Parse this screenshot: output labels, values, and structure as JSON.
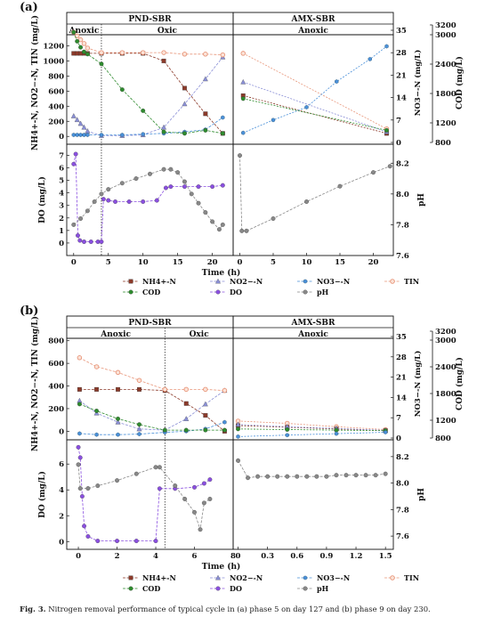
{
  "caption": {
    "label": "Fig. 3.",
    "text": "Nitrogen removal performance of typical cycle in (a) phase 5 on day 127 and (b) phase 9 on day 230."
  },
  "legend": [
    {
      "name": "NH4+-N",
      "color": "#8b3a2a",
      "marker": "square"
    },
    {
      "name": "NO2−-N",
      "color": "#8a8fd6",
      "marker": "triangle"
    },
    {
      "name": "NO3−-N",
      "color": "#4a90d9",
      "marker": "hexagon"
    },
    {
      "name": "TIN",
      "color": "#e8967a",
      "marker": "circle-open"
    },
    {
      "name": "COD",
      "color": "#2e8b2e",
      "marker": "circle"
    },
    {
      "name": "DO",
      "color": "#8a4fe0",
      "marker": "circle"
    },
    {
      "name": "pH",
      "color": "#888888",
      "marker": "circle"
    }
  ],
  "panels": [
    {
      "label": "(a)",
      "pnd_title": "PND-SBR",
      "amx_title": "AMX-SBR",
      "anoxic_label": "Anoxic",
      "oxic_label": "Oxic",
      "amx_phase_label": "Anoxic",
      "ylabel_n": "NH4+-N, NO2−-N, TIN (mg/L)",
      "ylabel_no3": "NO3−-N (mg/L)",
      "ylabel_cod": "COD (mg/L)",
      "ylabel_do": "DO (mg/L)",
      "ylabel_ph": "pH",
      "xlabel": "Time (h)"
    },
    {
      "label": "(b)",
      "pnd_title": "PND-SBR",
      "amx_title": "AMX-SBR",
      "anoxic_label": "Anoxic",
      "oxic_label": "Oxic",
      "amx_phase_label": "Anoxic",
      "ylabel_n": "NH4+-N, NO2−-N, TIN (mg/L)",
      "ylabel_no3": "NO3−-N (mg/L)",
      "ylabel_cod": "COD (mg/L)",
      "ylabel_do": "DO (mg/L)",
      "ylabel_ph": "pH",
      "xlabel": "Time (h)"
    }
  ],
  "chart_data": [
    {
      "panel": "(a)",
      "type": "line",
      "pnd_upper": {
        "xlim": [
          -1,
          23
        ],
        "ylim": [
          -80,
          1500
        ],
        "yticks": [
          0,
          200,
          400,
          600,
          800,
          1000,
          1200
        ],
        "phase_boundary_h": 4,
        "series": [
          {
            "name": "NH4+-N",
            "x": [
              0,
              0.5,
              1,
              1.5,
              2,
              4,
              7,
              10,
              13,
              16,
              19,
              21.5
            ],
            "y": [
              1100,
              1100,
              1100,
              1100,
              1100,
              1100,
              1100,
              1100,
              1000,
              640,
              300,
              40
            ]
          },
          {
            "name": "NO2−-N",
            "x": [
              0,
              0.5,
              1,
              1.5,
              2,
              4,
              7,
              10,
              13,
              16,
              19,
              21.5
            ],
            "y": [
              270,
              220,
              170,
              120,
              70,
              10,
              10,
              20,
              120,
              430,
              760,
              1050
            ]
          },
          {
            "name": "NO3−-N",
            "x": [
              0,
              0.5,
              1,
              1.5,
              2,
              4,
              7,
              10,
              13,
              16,
              19,
              21.5
            ],
            "y": [
              20,
              20,
              20,
              20,
              20,
              20,
              20,
              30,
              40,
              60,
              90,
              250
            ]
          },
          {
            "name": "TIN",
            "x": [
              0,
              0.5,
              1,
              1.5,
              2,
              4,
              7,
              10,
              13,
              16,
              19,
              21.5
            ],
            "y": [
              1380,
              1330,
              1280,
              1230,
              1170,
              1110,
              1110,
              1110,
              1110,
              1090,
              1090,
              1080
            ]
          },
          {
            "name": "COD",
            "x": [
              0,
              0.5,
              1,
              1.5,
              2,
              4,
              7,
              10,
              13,
              16,
              19,
              21.5
            ],
            "y": [
              1380,
              1260,
              1180,
              1120,
              1090,
              960,
              620,
              340,
              60,
              40,
              80,
              40
            ]
          }
        ]
      },
      "pnd_lower": {
        "xlim": [
          -1,
          23
        ],
        "ylim_do": [
          -1,
          7.6
        ],
        "yticks_do": [
          0,
          1,
          2,
          3,
          4,
          5,
          6,
          7
        ],
        "ylim_ph": [
          7.6,
          8.3
        ],
        "yticks_ph": [
          7.6,
          7.8,
          8.0,
          8.2
        ],
        "xticks": [
          0,
          5,
          10,
          15,
          20
        ],
        "series": [
          {
            "name": "DO",
            "x": [
              0,
              0.3,
              0.6,
              0.9,
              1.5,
              2.5,
              3.5,
              4,
              4.3,
              5,
              6,
              8,
              10,
              12,
              13.3,
              14,
              16,
              18,
              20,
              21.5
            ],
            "y": [
              6.3,
              7.1,
              0.6,
              0.2,
              0.1,
              0.1,
              0.1,
              0.1,
              3.5,
              3.4,
              3.3,
              3.3,
              3.3,
              3.4,
              4.4,
              4.5,
              4.5,
              4.5,
              4.5,
              4.6
            ]
          },
          {
            "name": "pH",
            "x": [
              0,
              1,
              2,
              3,
              4,
              5,
              7,
              9,
              11,
              13,
              14,
              15,
              16,
              17,
              18,
              19,
              20,
              21,
              21.5
            ],
            "y": [
              7.8,
              7.84,
              7.89,
              7.95,
              8.0,
              8.03,
              8.07,
              8.1,
              8.13,
              8.16,
              8.16,
              8.14,
              8.08,
              8.0,
              7.94,
              7.88,
              7.82,
              7.77,
              7.8
            ]
          }
        ]
      },
      "amx_upper": {
        "xlim": [
          -1,
          23
        ],
        "ylim_no3": [
          0,
          35
        ],
        "yticks_no3": [
          0,
          7,
          14,
          21,
          28,
          35
        ],
        "ylim_cod": [
          800,
          3200
        ],
        "yticks_cod": [
          800,
          1200,
          1800,
          2400,
          3000,
          3200
        ],
        "series": [
          {
            "name": "NH4+-N",
            "axis": "left",
            "x": [
              0.5,
              22
            ],
            "y": [
              540,
              40
            ]
          },
          {
            "name": "NO2−-N",
            "axis": "left",
            "x": [
              0.5,
              22
            ],
            "y": [
              720,
              60
            ]
          },
          {
            "name": "TIN",
            "axis": "left",
            "x": [
              0.5,
              22
            ],
            "y": [
              1100,
              100
            ]
          },
          {
            "name": "COD",
            "axis": "left",
            "x": [
              0.5,
              22
            ],
            "y": [
              500,
              80
            ]
          },
          {
            "name": "NO3−-N",
            "axis": "no3",
            "x": [
              0.5,
              5,
              10,
              14.5,
              19.5,
              22
            ],
            "y": [
              3,
              7,
              11,
              19,
              26,
              30
            ]
          }
        ]
      },
      "amx_lower": {
        "xlim": [
          -1,
          23
        ],
        "xticks": [
          0,
          5,
          10,
          15,
          20
        ],
        "series": [
          {
            "name": "pH",
            "x": [
              0,
              0.3,
              1,
              5,
              10,
              15,
              20,
              22.5
            ],
            "y": [
              8.25,
              7.76,
              7.76,
              7.84,
              7.95,
              8.05,
              8.14,
              8.18
            ]
          }
        ]
      }
    },
    {
      "panel": "(b)",
      "type": "line",
      "pnd_upper": {
        "xlim": [
          -0.6,
          7.2
        ],
        "ylim": [
          -60,
          900
        ],
        "yticks": [
          0,
          200,
          400,
          600,
          800
        ],
        "phase_boundary_h": 4,
        "series": [
          {
            "name": "NH4+-N",
            "x": [
              0,
              0.8,
              1.8,
              2.8,
              4,
              5,
              5.9,
              6.8
            ],
            "y": [
              370,
              370,
              370,
              370,
              360,
              245,
              140,
              0
            ]
          },
          {
            "name": "NO2−-N",
            "x": [
              0,
              0.8,
              1.8,
              2.8,
              4,
              5,
              5.9,
              6.8
            ],
            "y": [
              270,
              160,
              80,
              20,
              10,
              110,
              240,
              360
            ]
          },
          {
            "name": "NO3−-N",
            "x": [
              0,
              0.8,
              1.8,
              2.8,
              4,
              5,
              5.9,
              6.8
            ],
            "y": [
              -20,
              -30,
              -30,
              -25,
              -10,
              0,
              20,
              80
            ]
          },
          {
            "name": "TIN",
            "x": [
              0,
              0.8,
              1.8,
              2.8,
              4,
              5,
              5.9,
              6.8
            ],
            "y": [
              650,
              570,
              520,
              450,
              370,
              370,
              370,
              360
            ]
          },
          {
            "name": "COD",
            "x": [
              0,
              0.8,
              1.8,
              2.8,
              4,
              5,
              5.9,
              6.8
            ],
            "y": [
              240,
              180,
              110,
              60,
              10,
              10,
              10,
              10
            ]
          }
        ]
      },
      "pnd_lower": {
        "xlim": [
          -0.6,
          8
        ],
        "ylim_do": [
          -0.6,
          7.6
        ],
        "yticks_do": [
          0,
          2,
          4,
          6
        ],
        "ylim_ph": [
          7.5,
          8.3
        ],
        "yticks_ph": [
          7.6,
          7.8,
          8.0,
          8.2
        ],
        "xticks": [
          0,
          2,
          4,
          6,
          8
        ],
        "series": [
          {
            "name": "DO",
            "x": [
              0,
              0.1,
              0.2,
              0.3,
              0.5,
              1,
              2,
              3,
              4,
              4.2,
              5,
              6,
              6.5,
              6.8
            ],
            "y": [
              7.3,
              6.5,
              3.5,
              1.2,
              0.4,
              0.05,
              0.05,
              0.05,
              0.05,
              4.1,
              4.1,
              4.2,
              4.5,
              4.8
            ]
          },
          {
            "name": "pH",
            "x": [
              0,
              0.1,
              0.5,
              1,
              2,
              3,
              4,
              4.2,
              5,
              5.5,
              6,
              6.3,
              6.5,
              6.8
            ],
            "y": [
              8.14,
              7.96,
              7.96,
              7.98,
              8.02,
              8.07,
              8.12,
              8.12,
              7.98,
              7.88,
              7.78,
              7.65,
              7.85,
              7.88
            ]
          }
        ]
      },
      "amx_upper": {
        "xlim": [
          -0.05,
          1.58
        ],
        "ylim_no3": [
          0,
          35
        ],
        "yticks_no3": [
          0,
          7,
          14,
          21,
          28,
          35
        ],
        "ylim_cod": [
          800,
          3200
        ],
        "yticks_cod": [
          800,
          1200,
          1800,
          2400,
          3000,
          3200
        ],
        "series": [
          {
            "name": "TIN",
            "axis": "left",
            "x": [
              0,
              0.5,
              1,
              1.5
            ],
            "y": [
              90,
              70,
              40,
              15
            ]
          },
          {
            "name": "NH4+-N",
            "axis": "left",
            "x": [
              0,
              0.5,
              1,
              1.5
            ],
            "y": [
              50,
              35,
              20,
              5
            ]
          },
          {
            "name": "NO2−-N",
            "axis": "left",
            "x": [
              0,
              0.5,
              1,
              1.5
            ],
            "y": [
              60,
              40,
              25,
              8
            ]
          },
          {
            "name": "COD",
            "axis": "left",
            "x": [
              0,
              0.5,
              1,
              1.5
            ],
            "y": [
              20,
              15,
              10,
              5
            ]
          },
          {
            "name": "NO3−-N",
            "axis": "no3",
            "x": [
              0,
              0.5,
              1,
              1.5
            ],
            "y": [
              0.5,
              1,
              1.5,
              2
            ]
          }
        ]
      },
      "amx_lower": {
        "xlim": [
          -0.05,
          1.58
        ],
        "xticks": [
          0,
          0.3,
          0.6,
          0.9,
          1.2,
          1.5
        ],
        "series": [
          {
            "name": "pH",
            "x": [
              0,
              0.1,
              0.2,
              0.3,
              0.4,
              0.5,
              0.6,
              0.7,
              0.8,
              0.9,
              1.0,
              1.1,
              1.2,
              1.3,
              1.4,
              1.5
            ],
            "y": [
              8.17,
              8.04,
              8.05,
              8.05,
              8.05,
              8.05,
              8.05,
              8.05,
              8.05,
              8.05,
              8.06,
              8.06,
              8.06,
              8.06,
              8.06,
              8.07
            ]
          }
        ]
      }
    }
  ]
}
